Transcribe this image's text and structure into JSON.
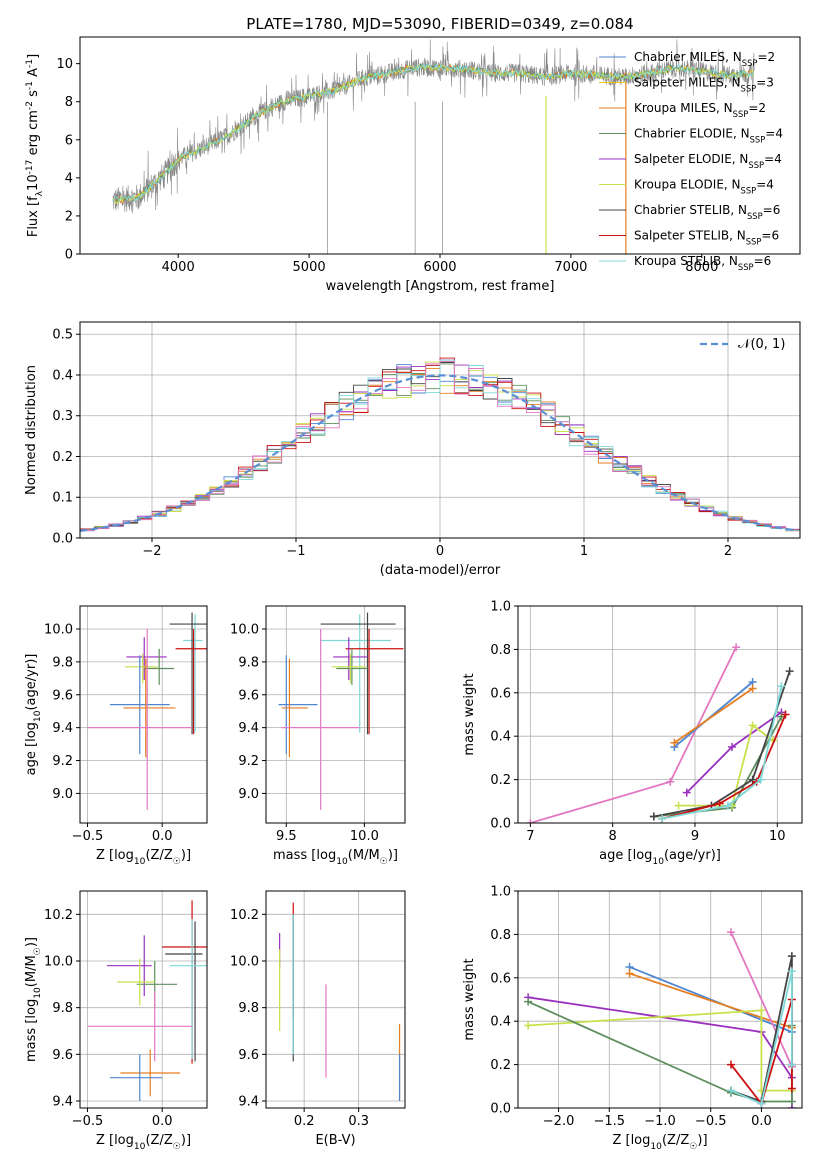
{
  "figure_title": "PLATE=1780, MJD=53090, FIBERID=0349, z=0.084",
  "colors": {
    "Chabrier MILES": "#4f86d0",
    "Salpeter MILES": "#f1c40f",
    "Kroupa MILES": "#e67e22",
    "Chabrier ELODIE": "#5f8f5f",
    "Salpeter ELODIE": "#9b30c0",
    "Kroupa ELODIE": "#c8e04a",
    "Chabrier STELIB": "#444444",
    "Salpeter STELIB": "#cc1010",
    "Kroupa STELIB": "#7fd8d8",
    "spectrum": "#888888",
    "pink": "#e377c2"
  },
  "chart_data": [
    {
      "id": "spectrum",
      "type": "line",
      "xlabel": "wavelength [Angstrom, rest frame]",
      "ylabel": "Flux [f$_\\lambda$10$^{-17}$ erg cm$^{-2}$ s$^{-1}$ A$^{-1}$]",
      "xlim": [
        3250,
        8750
      ],
      "ylim": [
        0,
        11.4
      ],
      "xticks": [
        4000,
        5000,
        6000,
        7000,
        8000
      ],
      "yticks": [
        0,
        2,
        4,
        6,
        8,
        10
      ],
      "legend_position": "top-right",
      "legend": [
        {
          "label": "Chabrier MILES, N",
          "sub": "SSP",
          "tail": "=2"
        },
        {
          "label": "Salpeter MILES, N",
          "sub": "SSP",
          "tail": "=3"
        },
        {
          "label": "Kroupa MILES, N",
          "sub": "SSP",
          "tail": "=2"
        },
        {
          "label": "Chabrier ELODIE, N",
          "sub": "SSP",
          "tail": "=4"
        },
        {
          "label": "Salpeter ELODIE, N",
          "sub": "SSP",
          "tail": "=4"
        },
        {
          "label": "Kroupa ELODIE, N",
          "sub": "SSP",
          "tail": "=4"
        },
        {
          "label": "Chabrier STELIB, N",
          "sub": "SSP",
          "tail": "=6"
        },
        {
          "label": "Salpeter STELIB, N",
          "sub": "SSP",
          "tail": "=6"
        },
        {
          "label": "Kroupa STELIB, N",
          "sub": "SSP",
          "tail": "=6"
        }
      ],
      "continuum": [
        [
          3500,
          2.8
        ],
        [
          3700,
          3.0
        ],
        [
          3900,
          4.2
        ],
        [
          4000,
          5.0
        ],
        [
          4200,
          5.6
        ],
        [
          4400,
          6.3
        ],
        [
          4600,
          7.3
        ],
        [
          4800,
          8.0
        ],
        [
          5000,
          8.3
        ],
        [
          5200,
          8.6
        ],
        [
          5400,
          9.2
        ],
        [
          5600,
          9.5
        ],
        [
          5800,
          9.8
        ],
        [
          6000,
          9.8
        ],
        [
          6200,
          9.7
        ],
        [
          6400,
          9.5
        ],
        [
          6600,
          9.5
        ],
        [
          6800,
          9.3
        ],
        [
          7000,
          9.5
        ],
        [
          7200,
          9.4
        ],
        [
          7400,
          9.3
        ],
        [
          7600,
          9.5
        ],
        [
          7800,
          9.8
        ],
        [
          8000,
          9.6
        ],
        [
          8200,
          9.4
        ],
        [
          8400,
          9.5
        ]
      ]
    },
    {
      "id": "residuals",
      "type": "histogram",
      "xlabel": "(data-model)/error",
      "ylabel": "Normed distribution",
      "xlim": [
        -2.5,
        2.5
      ],
      "ylim": [
        0,
        0.53
      ],
      "xticks": [
        -2,
        -1,
        0,
        1,
        2
      ],
      "yticks": [
        0.0,
        0.1,
        0.2,
        0.3,
        0.4,
        0.5
      ],
      "legend": "$\\mathcal{N}(0, 1)$",
      "legend_position": "top-right",
      "reference_curve": "N(0,1)"
    },
    {
      "id": "age_vs_Z",
      "type": "errorbar",
      "xlabel": "Z [log$_{10}$(Z/Z$_\\odot$)]",
      "ylabel": "age  [log$_{10}$(age/yr)]",
      "xlim": [
        -0.55,
        0.3
      ],
      "ylim": [
        8.82,
        10.14
      ],
      "xticks": [
        -0.5,
        0.0
      ],
      "yticks": [
        9.0,
        9.2,
        9.4,
        9.6,
        9.8,
        10.0
      ],
      "points": [
        {
          "s": "Kroupa STELIB",
          "x": 0.22,
          "y": 9.93,
          "xe": [
            0.08,
            0.05
          ],
          "ye": [
            0.56,
            0.16
          ]
        },
        {
          "s": "Chabrier STELIB",
          "x": 0.2,
          "y": 10.03,
          "xe": [
            0.15,
            0.15
          ],
          "ye": [
            0.67,
            0.07
          ]
        },
        {
          "s": "Salpeter STELIB",
          "x": 0.21,
          "y": 9.88,
          "xe": [
            0.12,
            0.12
          ],
          "ye": [
            0.52,
            0.12
          ]
        },
        {
          "s": "Salpeter ELODIE",
          "x": -0.12,
          "y": 9.83,
          "xe": [
            0.12,
            0.15
          ],
          "ye": [
            0.14,
            0.12
          ]
        },
        {
          "s": "Chabrier ELODIE",
          "x": -0.02,
          "y": 9.76,
          "xe": [
            0.1,
            0.1
          ],
          "ye": [
            0.1,
            0.12
          ]
        },
        {
          "s": "Kroupa ELODIE",
          "x": -0.13,
          "y": 9.77,
          "xe": [
            0.12,
            0.1
          ],
          "ye": [
            0.1,
            0.08
          ]
        },
        {
          "s": "Chabrier MILES",
          "x": -0.15,
          "y": 9.54,
          "xe": [
            0.2,
            0.2
          ],
          "ye": [
            0.3,
            0.3
          ]
        },
        {
          "s": "Kroupa MILES",
          "x": -0.11,
          "y": 9.52,
          "xe": [
            0.15,
            0.2
          ],
          "ye": [
            0.3,
            0.3
          ]
        },
        {
          "s": "pink",
          "x": -0.1,
          "y": 9.4,
          "xe": [
            0.4,
            0.3
          ],
          "ye": [
            0.5,
            0.6
          ]
        }
      ]
    },
    {
      "id": "age_vs_mass",
      "type": "errorbar",
      "xlabel": "mass [log$_{10}$(M/M$_\\odot$)]",
      "ylabel": "",
      "xlim": [
        9.37,
        10.26
      ],
      "ylim": [
        8.82,
        10.14
      ],
      "xticks": [
        9.5,
        10.0
      ],
      "yticks": [
        9.0,
        9.2,
        9.4,
        9.6,
        9.8,
        10.0
      ],
      "points": [
        {
          "s": "Kroupa STELIB",
          "x": 9.97,
          "y": 9.93,
          "xe": [
            0.25,
            0.2
          ],
          "ye": [
            0.56,
            0.16
          ]
        },
        {
          "s": "Chabrier STELIB",
          "x": 10.02,
          "y": 10.03,
          "xe": [
            0.3,
            0.18
          ],
          "ye": [
            0.67,
            0.07
          ]
        },
        {
          "s": "Salpeter STELIB",
          "x": 10.03,
          "y": 9.88,
          "xe": [
            0.15,
            0.22
          ],
          "ye": [
            0.52,
            0.12
          ]
        },
        {
          "s": "Salpeter ELODIE",
          "x": 9.9,
          "y": 9.83,
          "xe": [
            0.1,
            0.12
          ],
          "ye": [
            0.14,
            0.12
          ]
        },
        {
          "s": "Chabrier ELODIE",
          "x": 9.92,
          "y": 9.76,
          "xe": [
            0.1,
            0.1
          ],
          "ye": [
            0.1,
            0.12
          ]
        },
        {
          "s": "Kroupa ELODIE",
          "x": 9.91,
          "y": 9.77,
          "xe": [
            0.12,
            0.1
          ],
          "ye": [
            0.1,
            0.08
          ]
        },
        {
          "s": "Chabrier MILES",
          "x": 9.5,
          "y": 9.54,
          "xe": [
            0.05,
            0.2
          ],
          "ye": [
            0.3,
            0.3
          ]
        },
        {
          "s": "Kroupa MILES",
          "x": 9.52,
          "y": 9.52,
          "xe": [
            0.05,
            0.12
          ],
          "ye": [
            0.3,
            0.3
          ]
        },
        {
          "s": "pink",
          "x": 9.72,
          "y": 9.4,
          "xe": [
            0.25,
            0.25
          ],
          "ye": [
            0.5,
            0.6
          ]
        }
      ]
    },
    {
      "id": "mass_weight_vs_age",
      "type": "line",
      "xlabel": "age  [log$_{10}$(age/yr)]",
      "ylabel": "mass weight",
      "xlim": [
        6.85,
        10.3
      ],
      "ylim": [
        0,
        1
      ],
      "xticks": [
        7,
        8,
        9,
        10
      ],
      "yticks": [
        0.0,
        0.2,
        0.4,
        0.6,
        0.8,
        1.0
      ],
      "series": [
        {
          "s": "pink",
          "x": [
            7.0,
            8.7,
            9.5
          ],
          "y": [
            0.0,
            0.19,
            0.81
          ]
        },
        {
          "s": "Chabrier MILES",
          "x": [
            8.75,
            9.7
          ],
          "y": [
            0.35,
            0.65
          ]
        },
        {
          "s": "Kroupa MILES",
          "x": [
            8.75,
            9.7
          ],
          "y": [
            0.37,
            0.62
          ]
        },
        {
          "s": "Salpeter ELODIE",
          "x": [
            8.9,
            9.45,
            10.05
          ],
          "y": [
            0.14,
            0.35,
            0.51
          ]
        },
        {
          "s": "Chabrier ELODIE",
          "x": [
            8.5,
            9.45,
            10.05
          ],
          "y": [
            0.03,
            0.07,
            0.49
          ]
        },
        {
          "s": "Kroupa ELODIE",
          "x": [
            8.8,
            9.45,
            9.7,
            9.95
          ],
          "y": [
            0.08,
            0.08,
            0.45,
            0.38
          ]
        },
        {
          "s": "Chabrier STELIB",
          "x": [
            8.5,
            9.2,
            9.7,
            10.15
          ],
          "y": [
            0.03,
            0.08,
            0.2,
            0.7
          ]
        },
        {
          "s": "Salpeter STELIB",
          "x": [
            8.6,
            9.3,
            9.75,
            10.1
          ],
          "y": [
            0.02,
            0.09,
            0.19,
            0.5
          ]
        },
        {
          "s": "Kroupa STELIB",
          "x": [
            8.6,
            9.4,
            9.8,
            10.05
          ],
          "y": [
            0.02,
            0.08,
            0.2,
            0.63
          ]
        }
      ]
    },
    {
      "id": "mass_vs_Z",
      "type": "errorbar",
      "xlabel": "Z [log$_{10}$(Z/Z$_\\odot$)]",
      "ylabel": "mass [log$_{10}$(M/M$_\\odot$)]",
      "xlim": [
        -0.55,
        0.3
      ],
      "ylim": [
        9.37,
        10.3
      ],
      "xticks": [
        -0.5,
        0.0
      ],
      "yticks": [
        9.4,
        9.6,
        9.8,
        10.0,
        10.2
      ],
      "points": [
        {
          "s": "Salpeter STELIB",
          "x": 0.2,
          "y": 10.06,
          "xe": [
            0.2,
            0.2
          ],
          "ye": [
            0.5,
            0.2
          ]
        },
        {
          "s": "Chabrier STELIB",
          "x": 0.22,
          "y": 10.03,
          "xe": [
            0.2,
            0.05
          ],
          "ye": [
            0.46,
            0.14
          ]
        },
        {
          "s": "Kroupa STELIB",
          "x": 0.2,
          "y": 9.98,
          "xe": [
            0.15,
            0.1
          ],
          "ye": [
            0.4,
            0.2
          ]
        },
        {
          "s": "Salpeter ELODIE",
          "x": -0.12,
          "y": 9.98,
          "xe": [
            0.25,
            0.05
          ],
          "ye": [
            0.13,
            0.13
          ]
        },
        {
          "s": "Chabrier ELODIE",
          "x": -0.05,
          "y": 9.9,
          "xe": [
            0.12,
            0.15
          ],
          "ye": [
            0.1,
            0.1
          ]
        },
        {
          "s": "Kroupa ELODIE",
          "x": -0.15,
          "y": 9.91,
          "xe": [
            0.15,
            0.1
          ],
          "ye": [
            0.1,
            0.1
          ]
        },
        {
          "s": "pink",
          "x": -0.05,
          "y": 9.72,
          "xe": [
            0.45,
            0.25
          ],
          "ye": [
            0.15,
            0.15
          ]
        },
        {
          "s": "Kroupa MILES",
          "x": -0.08,
          "y": 9.52,
          "xe": [
            0.2,
            0.2
          ],
          "ye": [
            0.1,
            0.1
          ]
        },
        {
          "s": "Chabrier MILES",
          "x": -0.15,
          "y": 9.5,
          "xe": [
            0.2,
            0.15
          ],
          "ye": [
            0.1,
            0.1
          ]
        }
      ]
    },
    {
      "id": "mass_vs_EBV",
      "type": "errorbar",
      "xlabel": "E(B-V)",
      "ylabel": "",
      "xlim": [
        0.13,
        0.385
      ],
      "ylim": [
        9.37,
        10.3
      ],
      "xticks": [
        0.2,
        0.3
      ],
      "yticks": [
        9.4,
        9.6,
        9.8,
        10.0,
        10.2
      ],
      "points": [
        {
          "s": "Salpeter ELODIE",
          "x": 0.155,
          "y": 10.05,
          "xe": [
            0,
            0
          ],
          "ye": [
            0.08,
            0.07
          ]
        },
        {
          "s": "Kroupa ELODIE",
          "x": 0.155,
          "y": 9.85,
          "xe": [
            0,
            0
          ],
          "ye": [
            0.15,
            0.2
          ]
        },
        {
          "s": "Salpeter STELIB",
          "x": 0.18,
          "y": 10.05,
          "xe": [
            0,
            0
          ],
          "ye": [
            0.3,
            0.2
          ]
        },
        {
          "s": "Chabrier STELIB",
          "x": 0.18,
          "y": 9.95,
          "xe": [
            0,
            0
          ],
          "ye": [
            0.38,
            0.25
          ]
        },
        {
          "s": "Kroupa STELIB",
          "x": 0.18,
          "y": 9.85,
          "xe": [
            0,
            0
          ],
          "ye": [
            0.25,
            0.35
          ]
        },
        {
          "s": "pink",
          "x": 0.24,
          "y": 9.7,
          "xe": [
            0,
            0
          ],
          "ye": [
            0.2,
            0.2
          ]
        },
        {
          "s": "Kroupa MILES",
          "x": 0.375,
          "y": 9.55,
          "xe": [
            0,
            0
          ],
          "ye": [
            0.15,
            0.18
          ]
        },
        {
          "s": "Chabrier MILES",
          "x": 0.375,
          "y": 9.5,
          "xe": [
            0,
            0
          ],
          "ye": [
            0.1,
            0.1
          ]
        }
      ]
    },
    {
      "id": "mass_weight_vs_Z",
      "type": "line",
      "xlabel": "Z [log$_{10}$(Z/Z$_\\odot$)]",
      "ylabel": "mass weight",
      "xlim": [
        -2.4,
        0.4
      ],
      "ylim": [
        0,
        1
      ],
      "xticks": [
        -2.0,
        -1.5,
        -1.0,
        -0.5,
        0.0
      ],
      "yticks": [
        0.0,
        0.2,
        0.4,
        0.6,
        0.8,
        1.0
      ],
      "series": [
        {
          "s": "Chabrier MILES",
          "x": [
            -1.3,
            0.3
          ],
          "y": [
            0.65,
            0.35
          ]
        },
        {
          "s": "Kroupa MILES",
          "x": [
            -1.3,
            0.3
          ],
          "y": [
            0.62,
            0.37
          ]
        },
        {
          "s": "pink",
          "x": [
            -0.3,
            0.3
          ],
          "y": [
            0.81,
            0.19
          ]
        },
        {
          "s": "Salpeter ELODIE",
          "x": [
            -2.3,
            -0.0,
            0.3,
            0.3
          ],
          "y": [
            0.51,
            0.35,
            0.14,
            0.0
          ]
        },
        {
          "s": "Kroupa ELODIE",
          "x": [
            -2.3,
            0.0,
            0.0,
            0.3
          ],
          "y": [
            0.38,
            0.45,
            0.08,
            0.08
          ]
        },
        {
          "s": "Chabrier ELODIE",
          "x": [
            -2.3,
            -0.3,
            0.0,
            0.3,
            0.3
          ],
          "y": [
            0.49,
            0.07,
            0.03,
            0.03,
            0.38
          ]
        },
        {
          "s": "Chabrier STELIB",
          "x": [
            -0.3,
            0.0,
            0.3,
            0.3
          ],
          "y": [
            0.08,
            0.03,
            0.7,
            0.2
          ]
        },
        {
          "s": "Salpeter STELIB",
          "x": [
            -0.3,
            0.0,
            0.3,
            0.3
          ],
          "y": [
            0.2,
            0.02,
            0.5,
            0.09
          ]
        },
        {
          "s": "Kroupa STELIB",
          "x": [
            -0.3,
            0.0,
            0.3,
            0.3
          ],
          "y": [
            0.08,
            0.02,
            0.63,
            0.2
          ]
        }
      ]
    }
  ]
}
